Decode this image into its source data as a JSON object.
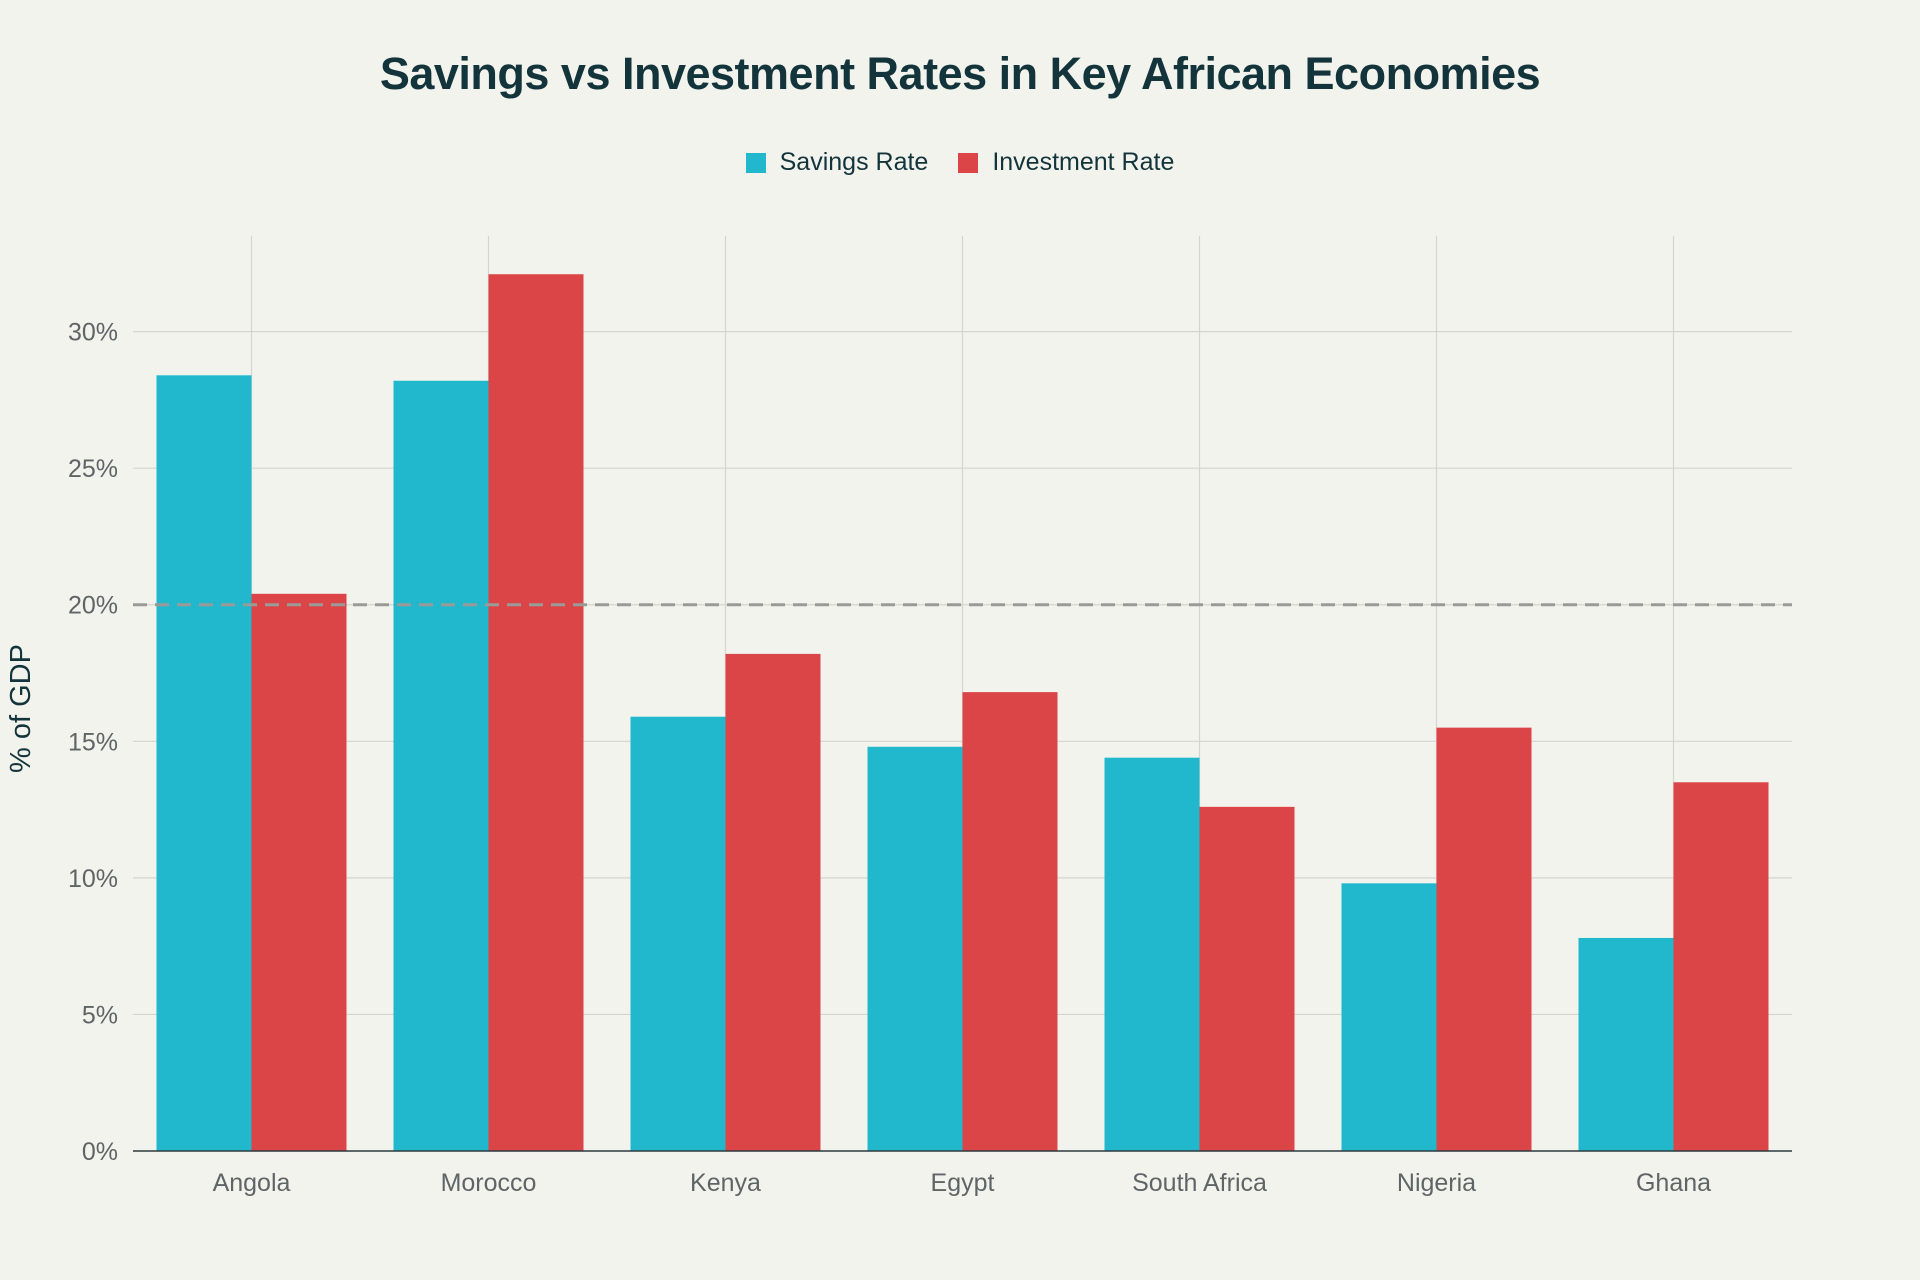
{
  "chart_data": {
    "type": "bar",
    "title": "Savings vs Investment Rates in Key African Economies",
    "xlabel": "",
    "ylabel": "% of GDP",
    "categories": [
      "Angola",
      "Morocco",
      "Kenya",
      "Egypt",
      "South Africa",
      "Nigeria",
      "Ghana"
    ],
    "series": [
      {
        "name": "Savings Rate",
        "color": "#21b8cd",
        "values": [
          28.4,
          28.2,
          15.9,
          14.8,
          14.4,
          9.8,
          7.8
        ]
      },
      {
        "name": "Investment Rate",
        "color": "#db4548",
        "values": [
          20.4,
          32.1,
          18.2,
          16.8,
          12.6,
          15.5,
          13.5
        ]
      }
    ],
    "ylim": [
      0,
      33.5
    ],
    "yticks": [
      0,
      5,
      10,
      15,
      20,
      25,
      30
    ],
    "ytick_labels": [
      "0%",
      "5%",
      "10%",
      "15%",
      "20%",
      "25%",
      "30%"
    ],
    "reference_line": {
      "value": 20,
      "style": "dashed",
      "color": "#9a9a96"
    },
    "grid": true,
    "legend_position": "top-center"
  }
}
